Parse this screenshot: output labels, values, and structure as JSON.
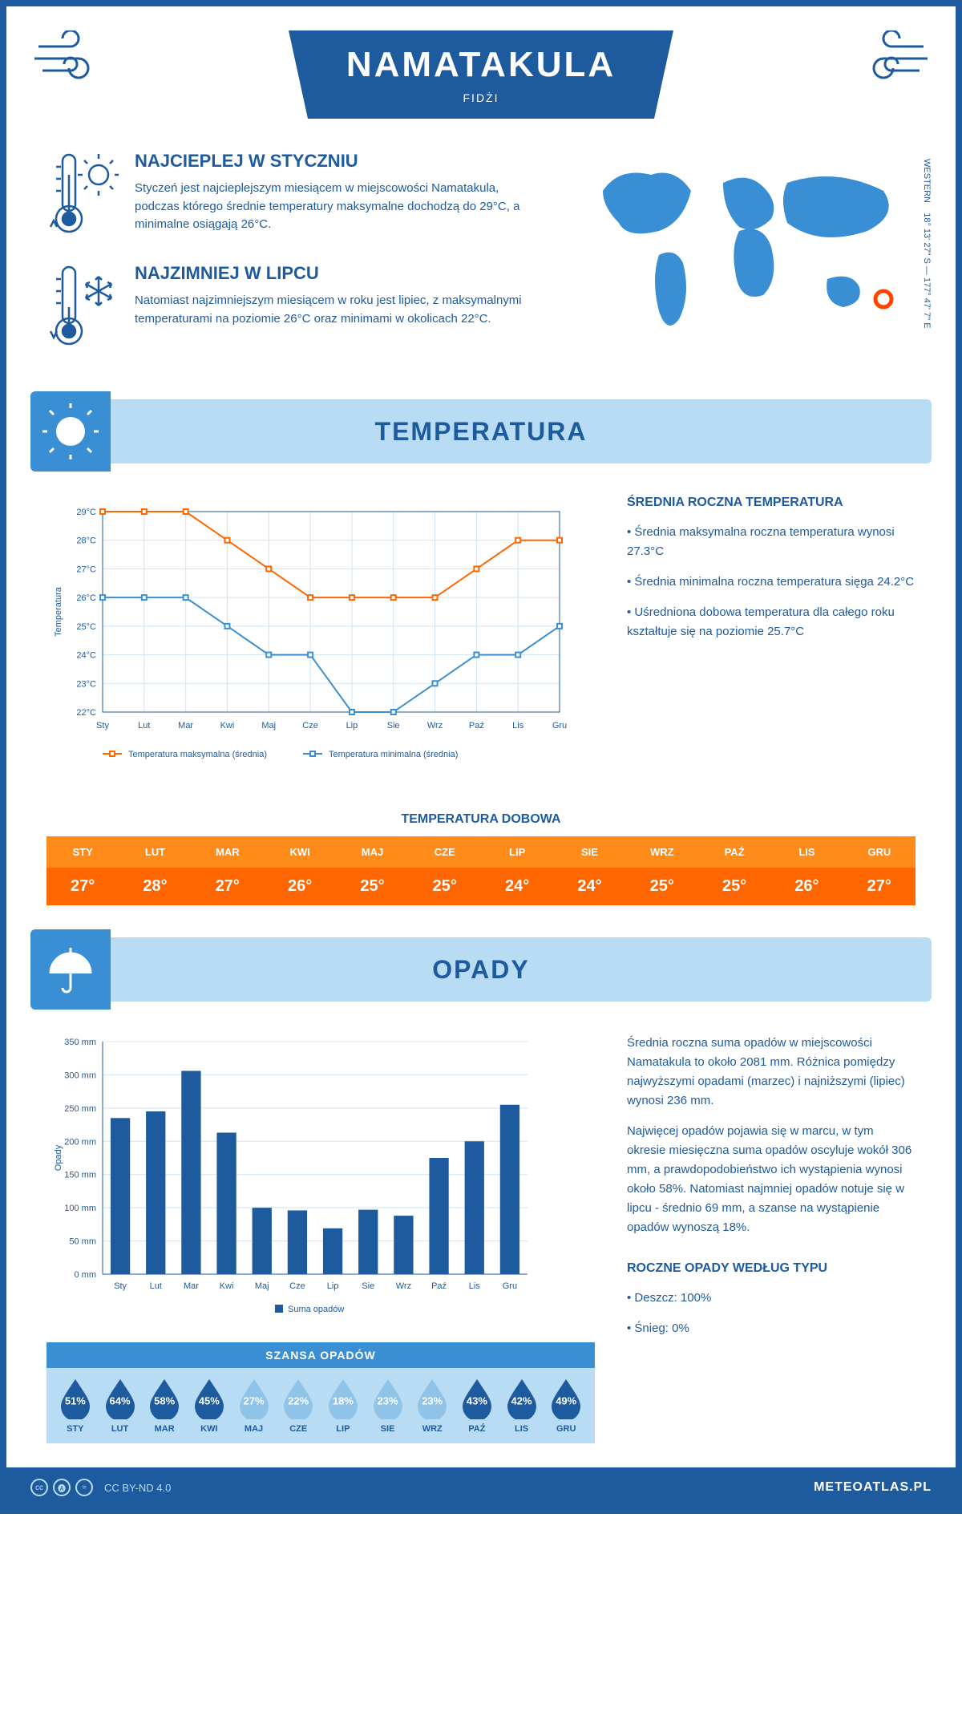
{
  "header": {
    "title": "NAMATAKULA",
    "subtitle": "FIDŻI"
  },
  "coords": "18° 13' 27\" S — 177° 47' 7\" E",
  "coords_label": "WESTERN",
  "facts": {
    "warm": {
      "title": "NAJCIEPLEJ W STYCZNIU",
      "text": "Styczeń jest najcieplejszym miesiącem w miejscowości Namatakula, podczas którego średnie temperatury maksymalne dochodzą do 29°C, a minimalne osiągają 26°C."
    },
    "cold": {
      "title": "NAJZIMNIEJ W LIPCU",
      "text": "Natomiast najzimniejszym miesiącem w roku jest lipiec, z maksymalnymi temperaturami na poziomie 26°C oraz minimami w okolicach 22°C."
    }
  },
  "temp_section": {
    "title": "TEMPERATURA",
    "side_title": "ŚREDNIA ROCZNA TEMPERATURA",
    "bullets": [
      "• Średnia maksymalna roczna temperatura wynosi 27.3°C",
      "• Średnia minimalna roczna temperatura sięga 24.2°C",
      "• Uśredniona dobowa temperatura dla całego roku kształtuje się na poziomie 25.7°C"
    ],
    "chart": {
      "type": "line",
      "months": [
        "Sty",
        "Lut",
        "Mar",
        "Kwi",
        "Maj",
        "Cze",
        "Lip",
        "Sie",
        "Wrz",
        "Paź",
        "Lis",
        "Gru"
      ],
      "series": [
        {
          "name": "Temperatura maksymalna (średnia)",
          "color": "#ff6600",
          "values": [
            29,
            29,
            29,
            28,
            27,
            26,
            26,
            26,
            26,
            27,
            28,
            28
          ]
        },
        {
          "name": "Temperatura minimalna (średnia)",
          "color": "#3a8fd4",
          "values": [
            26,
            26,
            26,
            25,
            24,
            24,
            22,
            22,
            23,
            24,
            24,
            25
          ]
        }
      ],
      "ylabel": "Temperatura",
      "ylim": [
        22,
        29
      ],
      "ytick_step": 1,
      "grid_color": "#d0e4f2",
      "label_fontsize": 11
    },
    "daily_title": "TEMPERATURA DOBOWA",
    "daily": {
      "months": [
        "STY",
        "LUT",
        "MAR",
        "KWI",
        "MAJ",
        "CZE",
        "LIP",
        "SIE",
        "WRZ",
        "PAŹ",
        "LIS",
        "GRU"
      ],
      "values": [
        "27°",
        "28°",
        "27°",
        "26°",
        "25°",
        "25°",
        "24°",
        "24°",
        "25°",
        "25°",
        "26°",
        "27°"
      ],
      "head_bg": "#ff8c1a",
      "body_bg": "#ff6600"
    }
  },
  "precip_section": {
    "title": "OPADY",
    "side_paragraphs": [
      "Średnia roczna suma opadów w miejscowości Namatakula to około 2081 mm. Różnica pomiędzy najwyższymi opadami (marzec) i najniższymi (lipiec) wynosi 236 mm.",
      "Najwięcej opadów pojawia się w marcu, w tym okresie miesięczna suma opadów oscyluje wokół 306 mm, a prawdopodobieństwo ich wystąpienia wynosi około 58%. Natomiast najmniej opadów notuje się w lipcu - średnio 69 mm, a szanse na wystąpienie opadów wynoszą 18%."
    ],
    "type_title": "ROCZNE OPADY WEDŁUG TYPU",
    "type_bullets": [
      "• Deszcz: 100%",
      "• Śnieg: 0%"
    ],
    "chart": {
      "type": "bar",
      "months": [
        "Sty",
        "Lut",
        "Mar",
        "Kwi",
        "Maj",
        "Cze",
        "Lip",
        "Sie",
        "Wrz",
        "Paź",
        "Lis",
        "Gru"
      ],
      "values": [
        235,
        245,
        306,
        213,
        100,
        96,
        69,
        97,
        88,
        175,
        200,
        255
      ],
      "bar_color": "#1e5a9e",
      "ylabel": "Opady",
      "legend": "Suma opadów",
      "ylim": [
        0,
        350
      ],
      "ytick_step": 50,
      "grid_color": "#d0e4f2",
      "label_fontsize": 11
    },
    "chance": {
      "title": "SZANSA OPADÓW",
      "months": [
        "STY",
        "LUT",
        "MAR",
        "KWI",
        "MAJ",
        "CZE",
        "LIP",
        "SIE",
        "WRZ",
        "PAŹ",
        "LIS",
        "GRU"
      ],
      "values": [
        51,
        64,
        58,
        45,
        27,
        22,
        18,
        23,
        23,
        43,
        42,
        49
      ],
      "dark_color": "#1e5a9e",
      "light_color": "#8fc4e8",
      "threshold": 40
    }
  },
  "footer": {
    "license": "CC BY-ND 4.0",
    "site": "METEOATLAS.PL"
  },
  "colors": {
    "primary": "#1e5a9e",
    "light_blue": "#b8dcf4",
    "mid_blue": "#3a8fd4",
    "orange": "#ff6600"
  }
}
